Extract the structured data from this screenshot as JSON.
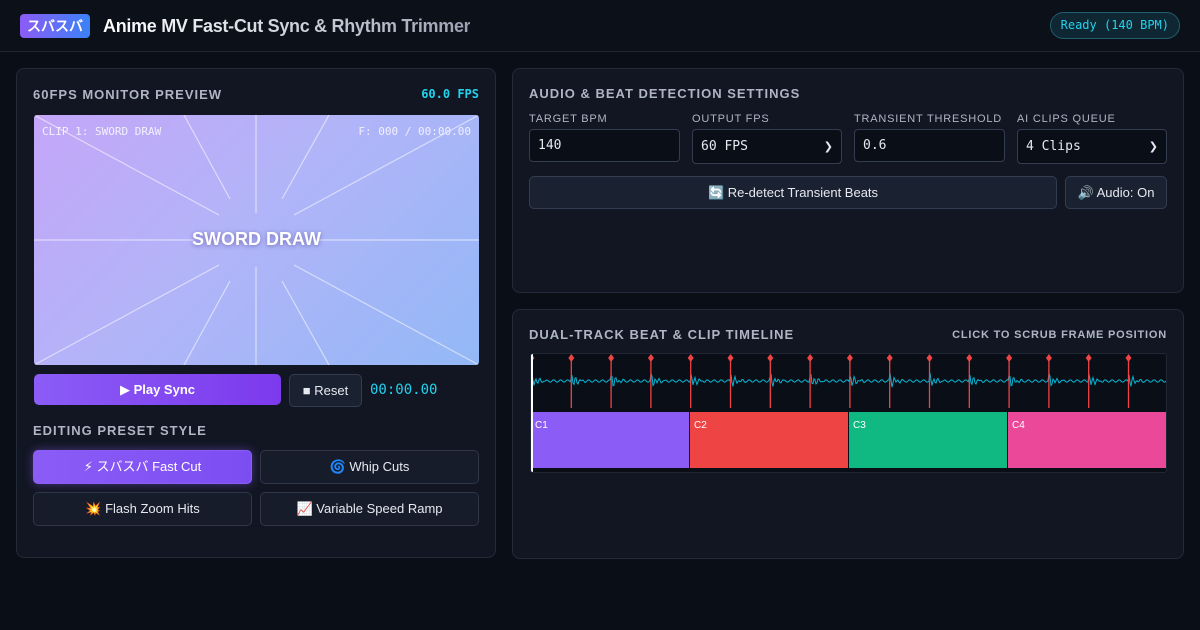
{
  "header": {
    "logo": "スバスバ",
    "title": "Anime MV Fast-Cut Sync & Rhythm Trimmer",
    "status": "Ready (140 BPM)"
  },
  "preview": {
    "title": "60FPS MONITOR PREVIEW",
    "fps": "60.0 FPS",
    "clip_label": "CLIP 1: SWORD DRAW",
    "frame_counter": "F: 000 / 00:00.00",
    "caption": "SWORD DRAW",
    "play_label": "▶ Play Sync",
    "reset_label": "■ Reset",
    "time": "00:00.00"
  },
  "presets": {
    "title": "EDITING PRESET STYLE",
    "items": [
      {
        "label": "⚡ スバスバ Fast Cut",
        "active": true
      },
      {
        "label": "🌀 Whip Cuts",
        "active": false
      },
      {
        "label": "💥 Flash Zoom Hits",
        "active": false
      },
      {
        "label": "📈 Variable Speed Ramp",
        "active": false
      }
    ]
  },
  "settings": {
    "title": "AUDIO & BEAT DETECTION SETTINGS",
    "bpm_label": "TARGET BPM",
    "bpm_value": "140",
    "fps_label": "OUTPUT FPS",
    "fps_value": "60 FPS",
    "threshold_label": "TRANSIENT THRESHOLD",
    "threshold_value": "0.6",
    "queue_label": "AI CLIPS QUEUE",
    "queue_value": "4 Clips",
    "redetect_label": "🔄 Re-detect Transient Beats",
    "audio_label": "🔊 Audio: On"
  },
  "timeline": {
    "title": "DUAL-TRACK BEAT & CLIP TIMELINE",
    "hint": "CLICK TO SCRUB FRAME POSITION",
    "clips": [
      {
        "label": "C1",
        "color": "#8b5cf6"
      },
      {
        "label": "C2",
        "color": "#ef4444"
      },
      {
        "label": "C3",
        "color": "#10b981"
      },
      {
        "label": "C4",
        "color": "#ec4899"
      }
    ],
    "beat_color": "#ef4444",
    "wave_color": "#06b6d4"
  }
}
